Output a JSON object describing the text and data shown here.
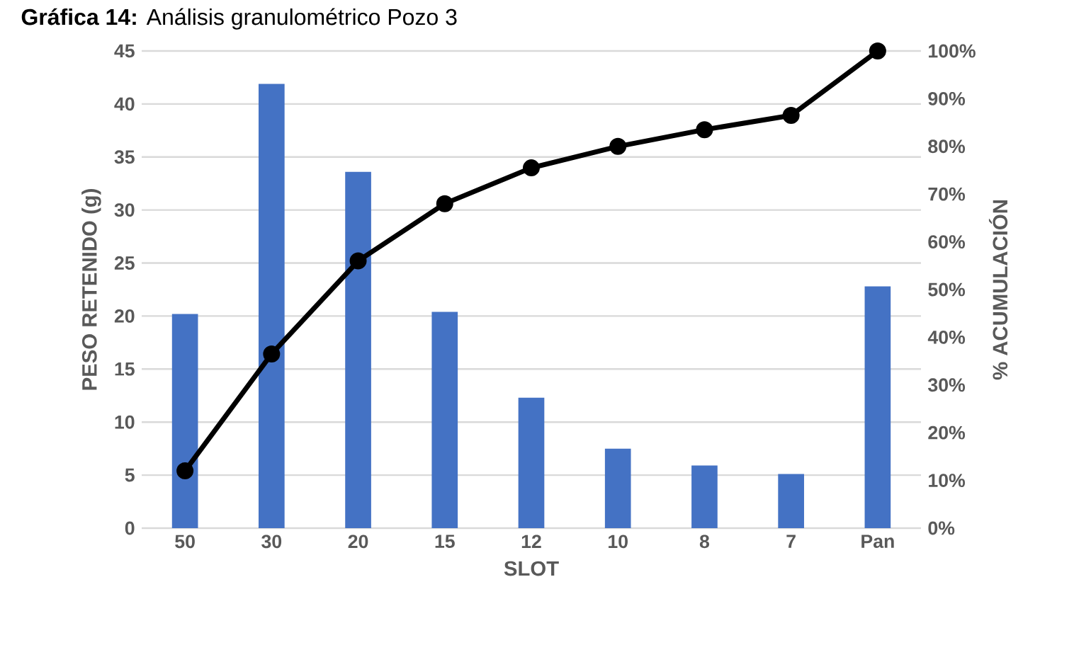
{
  "chart_data": {
    "type": "bar",
    "title": "**Gráfica 14:** Análisis granulométrico Pozo 3",
    "xlabel": "SLOT",
    "ylabel": "PESO RETENIDO (g)",
    "y2label": "% ACUMULACIÓN",
    "categories": [
      "50",
      "30",
      "20",
      "15",
      "12",
      "10",
      "8",
      "7",
      "Pan"
    ],
    "series": [
      {
        "color": "#4472c4",
        "values": [
          20.2,
          41.9,
          33.6,
          20.4,
          12.3,
          7.5,
          5.9,
          5.1,
          22.8
        ]
      },
      {
        "type": "line",
        "axis": "y2",
        "color": "#000000",
        "marker": "circle",
        "values": [
          12,
          36.5,
          56,
          68,
          75.5,
          80,
          83.5,
          86.5,
          100
        ]
      }
    ],
    "ylim": [
      0,
      45
    ],
    "yticks": [
      0,
      5,
      10,
      15,
      20,
      25,
      30,
      35,
      40,
      45
    ],
    "y2lim": [
      0,
      100
    ],
    "y2ticks": [
      {
        "value": 0,
        "label": "0%"
      },
      {
        "value": 10,
        "label": "10%"
      },
      {
        "value": 20,
        "label": "20%"
      },
      {
        "value": 30,
        "label": "30%"
      },
      {
        "value": 40,
        "label": "40%"
      },
      {
        "value": 50,
        "label": "50%"
      },
      {
        "value": 60,
        "label": "60%"
      },
      {
        "value": 70,
        "label": "70%"
      },
      {
        "value": 80,
        "label": "80%"
      },
      {
        "value": 90,
        "label": "90%"
      },
      {
        "value": 100,
        "label": "100%"
      }
    ],
    "grid": true
  }
}
